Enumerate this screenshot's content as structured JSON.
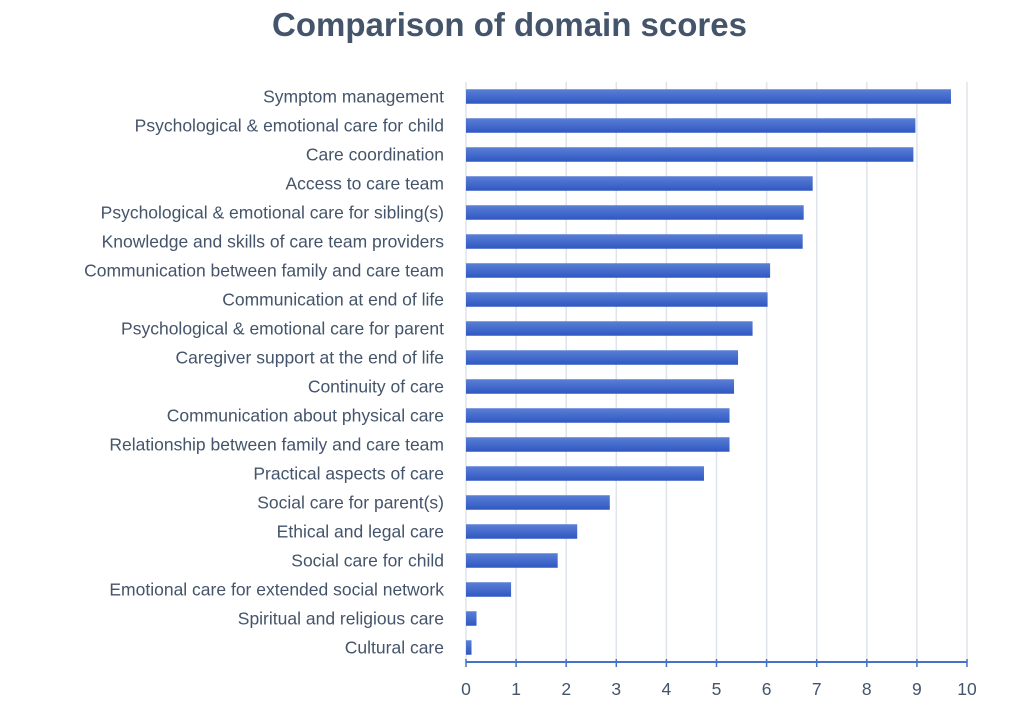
{
  "chart_data": {
    "type": "bar",
    "orientation": "horizontal",
    "title": "Comparison of domain scores",
    "xlabel": "",
    "ylabel": "",
    "xlim": [
      0,
      10
    ],
    "xticks": [
      "0",
      "1",
      "2",
      "3",
      "4",
      "5",
      "6",
      "7",
      "8",
      "9",
      "10"
    ],
    "grid": true,
    "bar_color": "#3d63c9",
    "categories": [
      "Symptom management",
      "Psychological & emotional care for child",
      "Care coordination",
      "Access to care team",
      "Psychological & emotional care for sibling(s)",
      "Knowledge and skills of care team providers",
      "Communication between family and care team",
      "Communication at end of life",
      "Psychological & emotional care for parent",
      "Caregiver support at the end of life",
      "Continuity of care",
      "Communication about physical care",
      "Relationship between family and care team",
      "Practical aspects of care",
      "Social care for parent(s)",
      "Ethical and legal care",
      "Social care for child",
      "Emotional care for extended social network",
      "Spiritual and religious care",
      "Cultural care"
    ],
    "values": [
      9.68,
      8.97,
      8.93,
      6.92,
      6.74,
      6.72,
      6.07,
      6.02,
      5.72,
      5.43,
      5.35,
      5.26,
      5.26,
      4.75,
      2.87,
      2.22,
      1.83,
      0.9,
      0.21,
      0.11
    ]
  }
}
